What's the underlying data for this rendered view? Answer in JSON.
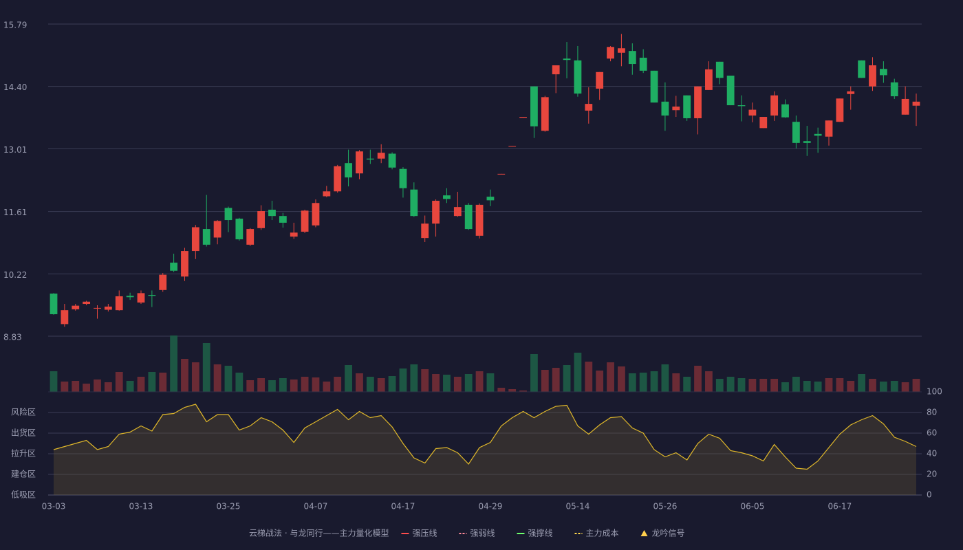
{
  "chart_data": {
    "type": "candlestick",
    "categories": [
      "03-03",
      null,
      null,
      null,
      null,
      null,
      null,
      null,
      "03-13",
      null,
      null,
      null,
      null,
      null,
      null,
      null,
      "03-25",
      null,
      null,
      null,
      null,
      null,
      null,
      null,
      "04-07",
      null,
      null,
      null,
      null,
      null,
      null,
      null,
      "04-17",
      null,
      null,
      null,
      null,
      null,
      null,
      null,
      "04-29",
      null,
      null,
      null,
      null,
      null,
      null,
      null,
      "05-14",
      null,
      null,
      null,
      null,
      null,
      null,
      null,
      "05-26",
      null,
      null,
      null,
      null,
      null,
      null,
      null,
      "06-05",
      null,
      null,
      null,
      null,
      null,
      null,
      null,
      "06-17",
      null,
      null,
      null,
      null,
      null,
      null,
      null
    ],
    "open": [
      9.78,
      9.1,
      9.43,
      9.55,
      9.45,
      9.42,
      9.41,
      9.73,
      9.58,
      9.75,
      9.86,
      10.47,
      10.16,
      10.73,
      11.22,
      11.03,
      11.69,
      11.45,
      10.87,
      11.24,
      11.65,
      11.51,
      11.05,
      11.16,
      11.3,
      11.95,
      12.06,
      12.69,
      12.46,
      12.79,
      12.79,
      12.9,
      12.56,
      12.1,
      11.02,
      11.34,
      11.97,
      11.51,
      11.76,
      11.07,
      11.94,
      12.44,
      13.06,
      13.7,
      14.4,
      13.41,
      14.67,
      15.02,
      14.98,
      13.86,
      14.35,
      15.02,
      15.15,
      15.19,
      15.04,
      14.75,
      14.06,
      13.87,
      14.2,
      13.69,
      14.32,
      14.95,
      14.64,
      13.98,
      13.75,
      13.47,
      13.75,
      14.0,
      13.61,
      13.18,
      13.34,
      13.28,
      13.61,
      14.23,
      14.98,
      14.4,
      14.79,
      14.49,
      13.77,
      13.97
    ],
    "high": [
      9.79,
      9.55,
      9.55,
      9.62,
      9.52,
      9.55,
      9.85,
      9.8,
      9.85,
      9.85,
      10.24,
      10.67,
      10.8,
      11.31,
      11.98,
      11.42,
      11.72,
      11.47,
      11.24,
      11.75,
      11.85,
      11.58,
      11.36,
      11.65,
      11.88,
      12.18,
      12.65,
      12.99,
      12.98,
      12.99,
      13.11,
      12.93,
      12.6,
      12.26,
      11.52,
      11.88,
      12.13,
      12.05,
      11.8,
      11.79,
      12.1,
      12.45,
      13.07,
      13.72,
      14.4,
      14.19,
      14.87,
      15.39,
      15.3,
      14.38,
      14.72,
      15.3,
      15.57,
      15.36,
      15.23,
      14.75,
      14.49,
      14.19,
      14.2,
      14.4,
      14.96,
      14.95,
      14.64,
      14.2,
      14.04,
      13.72,
      14.29,
      14.11,
      13.75,
      13.52,
      13.48,
      13.64,
      14.13,
      14.4,
      14.98,
      15.05,
      14.96,
      14.57,
      14.4,
      14.24
    ],
    "low": [
      9.31,
      9.04,
      9.4,
      9.52,
      9.22,
      9.38,
      9.4,
      9.64,
      9.55,
      9.48,
      9.82,
      10.26,
      10.06,
      10.55,
      10.83,
      10.88,
      11.15,
      10.96,
      10.84,
      11.2,
      11.42,
      11.25,
      11.0,
      11.13,
      11.26,
      11.93,
      12.03,
      12.17,
      12.33,
      12.67,
      12.69,
      12.55,
      11.92,
      11.49,
      10.93,
      11.05,
      11.8,
      11.49,
      11.2,
      11.01,
      11.73,
      12.44,
      13.06,
      13.7,
      13.25,
      13.39,
      14.25,
      14.58,
      14.17,
      13.57,
      14.1,
      14.96,
      14.85,
      14.66,
      14.7,
      14.04,
      13.41,
      13.72,
      13.63,
      13.33,
      14.32,
      14.45,
      13.98,
      13.62,
      13.6,
      13.47,
      13.63,
      13.7,
      13.02,
      12.85,
      12.92,
      13.08,
      13.61,
      13.88,
      14.59,
      14.3,
      14.48,
      14.12,
      13.77,
      13.52
    ],
    "close": [
      9.32,
      9.41,
      9.51,
      9.6,
      9.46,
      9.49,
      9.72,
      9.7,
      9.79,
      9.73,
      10.2,
      10.29,
      10.73,
      11.26,
      10.87,
      11.4,
      11.42,
      10.99,
      11.22,
      11.62,
      11.51,
      11.36,
      11.14,
      11.63,
      11.8,
      12.06,
      12.62,
      12.37,
      12.95,
      12.77,
      12.92,
      12.59,
      12.13,
      11.51,
      11.34,
      11.85,
      11.89,
      11.71,
      11.22,
      11.76,
      11.86,
      12.45,
      13.07,
      13.72,
      13.51,
      14.16,
      14.87,
      14.99,
      14.24,
      14.01,
      14.72,
      15.28,
      15.25,
      14.9,
      14.75,
      14.04,
      13.75,
      13.95,
      13.69,
      14.4,
      14.78,
      14.59,
      13.98,
      13.96,
      13.88,
      13.72,
      14.2,
      13.71,
      13.14,
      13.14,
      13.3,
      13.64,
      14.13,
      14.29,
      14.59,
      14.87,
      14.65,
      14.18,
      14.12,
      14.06
    ],
    "ylim": [
      8.83,
      15.79
    ],
    "yticks": [
      {
        "value": 8.83,
        "label": "8.83"
      },
      {
        "value": 10.22,
        "label": "10.22"
      },
      {
        "value": 11.61,
        "label": "11.61"
      },
      {
        "value": 13.01,
        "label": "13.01"
      },
      {
        "value": 14.4,
        "label": "14.40"
      },
      15.79
    ],
    "up_color": "#e8473e",
    "down_color": "#1fae63",
    "volume": {
      "values": [
        30,
        15,
        16,
        12,
        18,
        14,
        29,
        16,
        22,
        29,
        28,
        82,
        48,
        43,
        71,
        40,
        38,
        28,
        17,
        20,
        17,
        20,
        18,
        22,
        21,
        15,
        22,
        39,
        27,
        22,
        20,
        23,
        34,
        40,
        33,
        26,
        25,
        22,
        26,
        30,
        27,
        6,
        4,
        2,
        55,
        32,
        35,
        39,
        57,
        44,
        31,
        43,
        37,
        27,
        28,
        30,
        40,
        27,
        22,
        38,
        30,
        19,
        22,
        20,
        19,
        19,
        19,
        14,
        22,
        16,
        15,
        20,
        20,
        16,
        26,
        19,
        15,
        16,
        14,
        19
      ],
      "ylim": [
        0,
        82
      ],
      "up_color": "#6b2b35",
      "down_color": "#1d5744"
    },
    "oscillator": {
      "values": [
        44,
        47,
        50,
        53,
        44,
        47,
        59,
        61,
        67,
        62,
        78,
        79,
        85,
        88,
        71,
        78,
        78,
        63,
        67,
        75,
        71,
        63,
        51,
        65,
        71,
        77,
        83,
        73,
        81,
        75,
        77,
        66,
        50,
        36,
        31,
        45,
        46,
        41,
        30,
        46,
        51,
        67,
        75,
        81,
        75,
        81,
        86,
        87,
        67,
        59,
        68,
        75,
        76,
        65,
        60,
        44,
        37,
        41,
        34,
        50,
        59,
        55,
        43,
        41,
        38,
        33,
        49,
        37,
        26,
        25,
        33,
        46,
        59,
        68,
        73,
        77,
        69,
        56,
        52,
        47
      ],
      "ylim": [
        0,
        100
      ],
      "yticks": [
        0,
        20,
        40,
        60,
        80,
        100
      ],
      "ytick_colors": [
        "#ff4d4d",
        "#ff4d4d",
        "#4d9dff",
        "#e64de6",
        "#ff9a2e",
        "#3dde6a"
      ],
      "line_color": "#e0b82a",
      "zones": [
        {
          "label": "风险区",
          "value": 80,
          "color": "#ff9a2e"
        },
        {
          "label": "出货区",
          "value": 60,
          "color": "#e64de6"
        },
        {
          "label": "拉升区",
          "value": 40,
          "color": "#4d9dff"
        },
        {
          "label": "建仓区",
          "value": 20,
          "color": "#ff4d4d"
        },
        {
          "label": "低吸区",
          "value": 0,
          "color": "#ff4d4d"
        }
      ]
    },
    "legend": {
      "title": "云梯战法 · 与龙同行——主力量化模型",
      "title_color": "#e8c46a",
      "items": [
        {
          "name": "强压线",
          "color": "#ff4d4d",
          "style": "solid"
        },
        {
          "name": "强弱线",
          "color": "#ff8a9a",
          "style": "dashed"
        },
        {
          "name": "强撑线",
          "color": "#6cff6c",
          "style": "solid"
        },
        {
          "name": "主力成本",
          "color": "#ffd84d",
          "style": "dashed"
        },
        {
          "name": "龙吟信号",
          "color": "#ffcf4d",
          "style": "triangle"
        }
      ]
    }
  }
}
